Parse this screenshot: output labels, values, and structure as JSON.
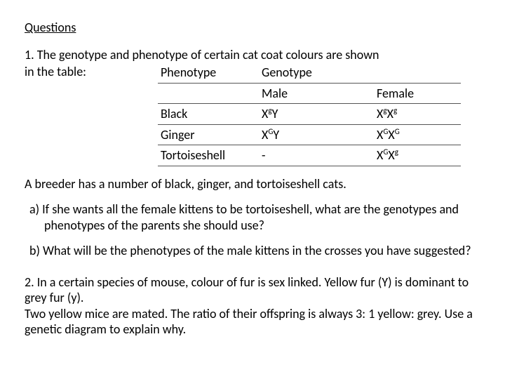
{
  "title": "Questions",
  "q1": {
    "intro_line1": "1. The genotype and phenotype of certain cat coat colours are shown",
    "intro_line2": "in the table:",
    "table": {
      "header_pheno": "Phenotype",
      "header_geno": "Genotype",
      "sub_male": "Male",
      "sub_female": "Female",
      "rows": [
        {
          "pheno": "Black",
          "male_html": "X<sup>g</sup>Y",
          "female_html": "X<sup>g</sup>X<sup>g</sup>"
        },
        {
          "pheno": "Ginger",
          "male_html": "X<sup>G</sup>Y",
          "female_html": "X<sup>G</sup>X<sup>G</sup>"
        },
        {
          "pheno": "Tortoiseshell",
          "male_html": "-",
          "female_html": "X<sup>G</sup>X<sup>g</sup>"
        }
      ]
    },
    "breeder": "A breeder has a number of black, ginger, and tortoiseshell cats.",
    "a": "a)  If she wants all the female kittens to be tortoiseshell, what are the genotypes and phenotypes of the parents she should use?",
    "b": "b)  What will be the phenotypes of the male kittens in the crosses you have suggested?"
  },
  "q2": {
    "line1": "2. In a certain species of mouse, colour of fur is sex linked.  Yellow fur (Y) is dominant to grey fur (y).",
    "line2": "Two yellow mice are mated. The ratio of their offspring is always 3: 1 yellow: grey.  Use a genetic diagram to explain why."
  },
  "style": {
    "font_family": "Calibri, Arial, sans-serif",
    "font_size_pt": 18,
    "text_color": "#000000",
    "background_color": "#ffffff",
    "table_border_color": "#555555"
  }
}
